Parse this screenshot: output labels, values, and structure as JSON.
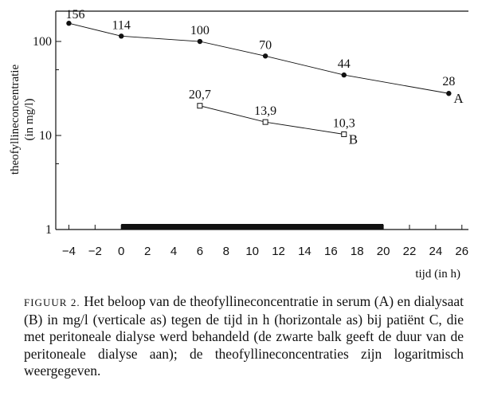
{
  "chart_data": {
    "type": "line",
    "xlabel": "tijd  (in h)",
    "ylabel_lines": [
      "theofyllineconcentratie",
      "(in mg/l)"
    ],
    "y_scale": "log",
    "xlim": [
      -5,
      26.5
    ],
    "ylim": [
      1,
      210
    ],
    "x_ticks": [
      -4,
      -2,
      0,
      2,
      4,
      6,
      8,
      10,
      12,
      14,
      16,
      18,
      20,
      22,
      24,
      26
    ],
    "y_ticks": [
      1,
      10,
      100
    ],
    "series": [
      {
        "name": "A",
        "marker": "filled-circle",
        "points": [
          {
            "x": -4,
            "y": 156,
            "label": "156"
          },
          {
            "x": 0,
            "y": 114,
            "label": "114"
          },
          {
            "x": 6,
            "y": 100,
            "label": "100"
          },
          {
            "x": 11,
            "y": 70,
            "label": "70"
          },
          {
            "x": 17,
            "y": 44,
            "label": "44"
          },
          {
            "x": 25,
            "y": 28,
            "label": "28"
          }
        ]
      },
      {
        "name": "B",
        "marker": "open-square",
        "points": [
          {
            "x": 6,
            "y": 20.7,
            "label": "20,7"
          },
          {
            "x": 11,
            "y": 13.9,
            "label": "13,9"
          },
          {
            "x": 17,
            "y": 10.3,
            "label": "10,3"
          }
        ]
      }
    ],
    "dialysis_bar": {
      "x_start": 0,
      "x_end": 20
    }
  },
  "caption": {
    "label": "FIGUUR 2.",
    "text": "Het beloop van de theofyllineconcentratie in serum (A) en dialysaat (B) in mg/l (verticale as) tegen de tijd in h (horizontale as) bij patiënt C, die met peritoneale dialyse werd behandeld (de zwarte balk geeft de duur van de peritoneale dialyse aan); de theofyllineconcentraties zijn logaritmisch weergegeven."
  }
}
